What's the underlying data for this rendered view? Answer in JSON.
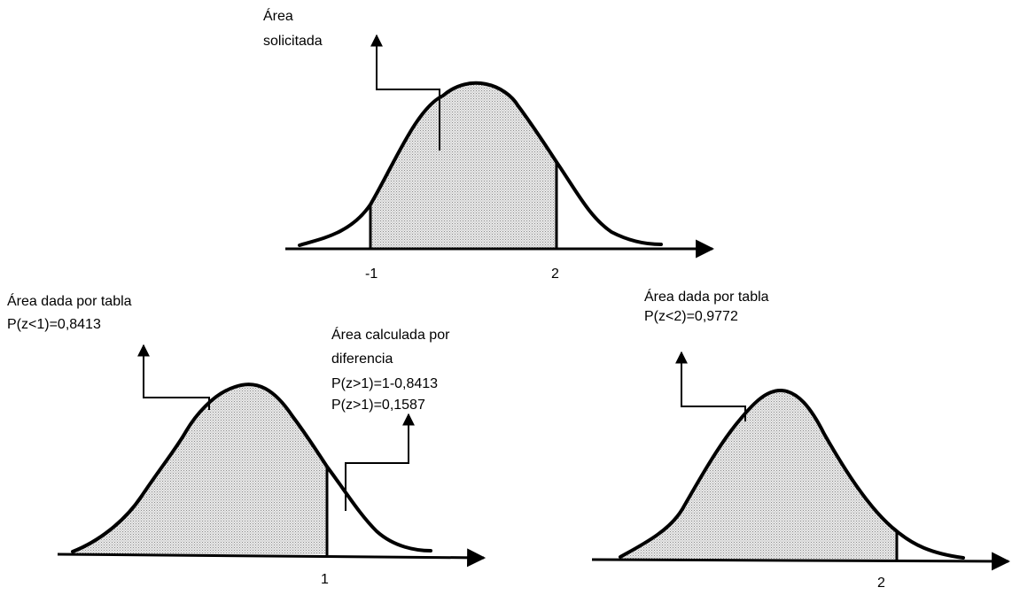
{
  "top_panel": {
    "callout_line1": "Área",
    "callout_line2": "solicitada",
    "tick_left": "-1",
    "tick_right": "2"
  },
  "left_panel": {
    "table_callout_line1": "Área dada por tabla",
    "table_callout_line2": "P(z<1)=0,8413",
    "diff_callout_line1": "Área calculada por",
    "diff_callout_line2": "diferencia",
    "diff_callout_line3": "P(z>1)=1-0,8413",
    "diff_callout_line4": "P(z>1)=0,1587",
    "tick": "1"
  },
  "right_panel": {
    "table_callout_line1": "Área dada por tabla",
    "table_callout_line2": "P(z<2)=0,9772",
    "tick": "2"
  },
  "colors": {
    "ink": "#000000",
    "shade_dot": "#8c8c8c",
    "shade_bg": "#e9e9e9"
  }
}
